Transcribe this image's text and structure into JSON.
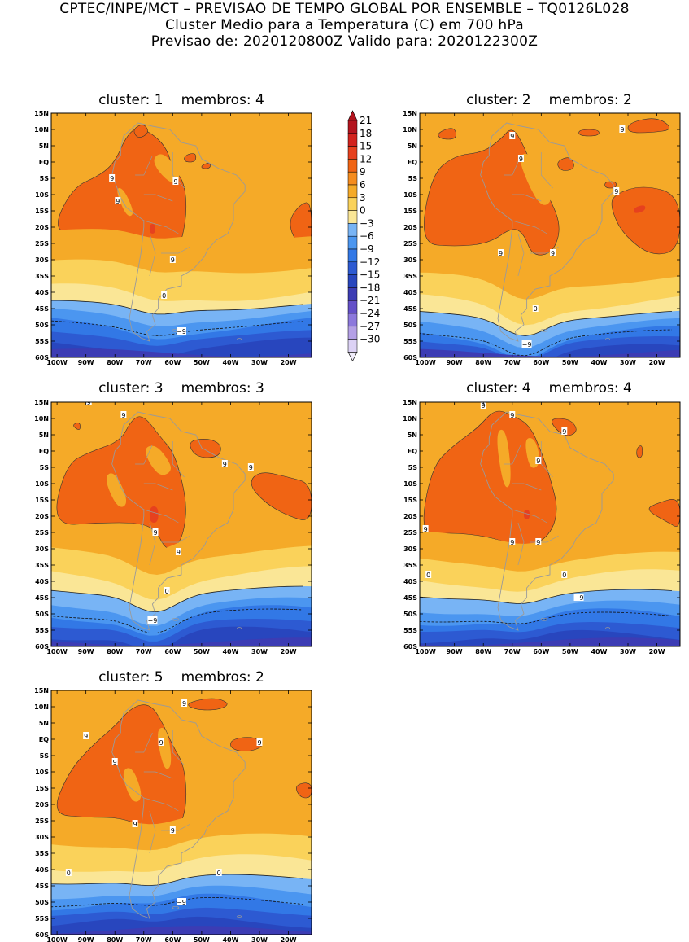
{
  "header": {
    "line1": "CPTEC/INPE/MCT – PREVISAO DE TEMPO GLOBAL POR ENSEMBLE – TQ0126L028",
    "line2": "Cluster Medio para a Temperatura (C) em 700 hPa",
    "line3": "Previsao de: 2020120800Z    Valido para: 2020122300Z"
  },
  "colorbar": {
    "labels": [
      "21",
      "18",
      "15",
      "12",
      "9",
      "6",
      "3",
      "0",
      "−3",
      "−6",
      "−9",
      "−12",
      "−15",
      "−18",
      "−21",
      "−24",
      "−27",
      "−30"
    ],
    "colors": [
      "#b4141e",
      "#d2231e",
      "#e6411e",
      "#f06414",
      "#f58c1e",
      "#f5aa28",
      "#fad25a",
      "#fae696",
      "#78b4f5",
      "#4b96f0",
      "#3278e6",
      "#2d5ad2",
      "#2846be",
      "#3c3cb4",
      "#6450c8",
      "#8c78dc",
      "#b4a0e6",
      "#dcd2f5"
    ]
  },
  "axes": {
    "lat_labels": [
      "15N",
      "10N",
      "5N",
      "EQ",
      "5S",
      "10S",
      "15S",
      "20S",
      "25S",
      "30S",
      "35S",
      "40S",
      "45S",
      "50S",
      "55S",
      "60S"
    ],
    "lon_labels": [
      "100W",
      "90W",
      "80W",
      "70W",
      "60W",
      "50W",
      "40W",
      "30W",
      "20W"
    ]
  },
  "clusters": [
    {
      "label": "cluster:",
      "number": "1",
      "members_label": "membros:",
      "members": "4",
      "contour_labels": [
        "9",
        "9",
        "9",
        "9",
        "0",
        "−9"
      ]
    },
    {
      "label": "cluster:",
      "number": "2",
      "members_label": "membros:",
      "members": "2",
      "contour_labels": [
        "9",
        "9",
        "9",
        "9",
        "9",
        "9",
        "0",
        "−9"
      ]
    },
    {
      "label": "cluster:",
      "number": "3",
      "members_label": "membros:",
      "members": "3",
      "contour_labels": [
        "9",
        "9",
        "9",
        "9",
        "9",
        "9",
        "0",
        "−9"
      ]
    },
    {
      "label": "cluster:",
      "number": "4",
      "members_label": "membros:",
      "members": "4",
      "contour_labels": [
        "9",
        "9",
        "9",
        "9",
        "9",
        "9",
        "9",
        "0",
        "0",
        "−9"
      ]
    },
    {
      "label": "cluster:",
      "number": "5",
      "members_label": "membros:",
      "members": "2",
      "contour_labels": [
        "9",
        "9",
        "9",
        "9",
        "9",
        "9",
        "9",
        "0",
        "0",
        "−9"
      ]
    }
  ]
}
